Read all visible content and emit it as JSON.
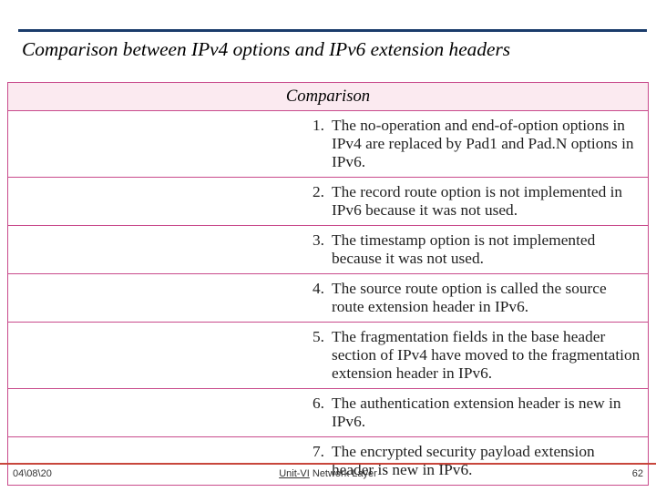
{
  "heading": {
    "text": "Comparison between IPv4 options and IPv6 extension headers",
    "font_size_pt": 16,
    "color": "#000000",
    "font_style": "italic"
  },
  "top_rule_color": "#1a3c6b",
  "table": {
    "header": {
      "label": "Comparison",
      "bg_color": "#fbeaf0",
      "border_color": "#c94b8c",
      "font_size_pt": 14,
      "font_style": "italic"
    },
    "cell_font_size_pt": 13,
    "cell_border_color": "#c94b8c",
    "cell_text_color": "#222222",
    "rows": [
      {
        "num": "1.",
        "text": "The no-operation and end-of-option options in IPv4 are replaced by Pad1 and Pad.N options in IPv6."
      },
      {
        "num": "2.",
        "text": "The record route option is not implemented in IPv6 because it was not used."
      },
      {
        "num": "3.",
        "text": "The timestamp option is not implemented because it was not used."
      },
      {
        "num": "4.",
        "text": "The source route option is called the source route extension header in IPv6."
      },
      {
        "num": "5.",
        "text": "The fragmentation fields in the base header section of IPv4 have moved to the fragmentation extension header in IPv6."
      },
      {
        "num": "6.",
        "text": "The authentication extension header is new in IPv6."
      },
      {
        "num": "7.",
        "text": "The encrypted security payload extension header is new in IPv6."
      }
    ]
  },
  "footer": {
    "rule_color": "#c8463c",
    "date": "04\\08\\20",
    "center_underlined": "Unit-VI",
    "center_rest": " Network Layer",
    "page": "62",
    "font_size_pt": 11
  }
}
